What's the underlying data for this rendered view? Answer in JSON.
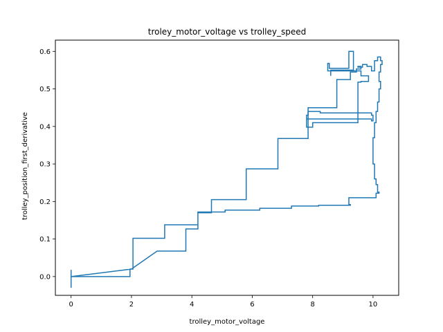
{
  "chart_data": {
    "type": "line",
    "title": "troley_motor_voltage vs trolley_speed",
    "xlabel": "trolley_motor_voltage",
    "ylabel": "trolley_position_first_derivative",
    "xlim": [
      -0.52,
      10.85
    ],
    "ylim": [
      -0.05,
      0.63
    ],
    "xticks": [
      0,
      2,
      4,
      6,
      8,
      10
    ],
    "xtick_labels": [
      "0",
      "2",
      "4",
      "6",
      "8",
      "10"
    ],
    "yticks": [
      0.0,
      0.1,
      0.2,
      0.3,
      0.4,
      0.5,
      0.6
    ],
    "ytick_labels": [
      "0.0",
      "0.1",
      "0.2",
      "0.3",
      "0.4",
      "0.5",
      "0.6"
    ],
    "grid": false,
    "legend": "none",
    "colors": {
      "series": "#1f77b4",
      "axes": "#000000",
      "background": "#ffffff"
    },
    "series": [
      {
        "x": [
          0,
          0,
          0,
          0,
          1.95,
          1.95,
          2.05,
          2.05,
          3.1,
          3.1,
          4.2,
          4.2,
          4.65,
          4.65,
          5.8,
          5.8,
          6.85,
          6.85,
          7.85,
          7.85,
          8.8,
          8.8,
          9.25,
          9.25,
          9.45,
          9.45,
          9.6,
          9.6,
          9.5,
          9.5,
          9.65,
          9.65,
          9.8,
          9.8,
          9.95,
          9.95,
          10.05,
          10.05,
          10.15,
          10.15,
          10.25,
          10.25,
          10.3,
          10.3,
          10.25,
          10.25,
          10.2,
          10.2,
          10.25,
          10.25,
          10.2,
          10.2,
          10.15,
          10.15,
          10.1,
          10.1,
          10.05,
          10.05,
          10.0,
          10.0,
          10.05,
          10.05,
          10.1,
          10.1,
          10.15,
          10.15,
          10.2,
          10.2,
          10.1,
          10.1,
          9.2,
          9.2,
          9.25,
          9.25,
          8.2,
          8.2,
          7.3,
          7.3,
          6.25,
          6.25,
          5.1,
          5.1,
          4.2,
          4.2,
          3.8,
          3.8,
          2.85,
          2.85,
          2.0,
          2.0,
          0
        ],
        "y": [
          0.018,
          -0.03,
          0,
          0,
          0,
          0.02,
          0.02,
          0.102,
          0.102,
          0.138,
          0.138,
          0.17,
          0.17,
          0.205,
          0.205,
          0.287,
          0.287,
          0.368,
          0.368,
          0.45,
          0.45,
          0.525,
          0.525,
          0.545,
          0.545,
          0.553,
          0.553,
          0.56,
          0.56,
          0.558,
          0.558,
          0.565,
          0.565,
          0.56,
          0.56,
          0.548,
          0.548,
          0.575,
          0.575,
          0.585,
          0.585,
          0.575,
          0.575,
          0.565,
          0.565,
          0.545,
          0.545,
          0.52,
          0.52,
          0.5,
          0.5,
          0.465,
          0.465,
          0.44,
          0.44,
          0.41,
          0.41,
          0.37,
          0.37,
          0.3,
          0.3,
          0.26,
          0.26,
          0.245,
          0.245,
          0.225,
          0.225,
          0.222,
          0.222,
          0.21,
          0.21,
          0.192,
          0.192,
          0.19,
          0.19,
          0.188,
          0.188,
          0.182,
          0.182,
          0.177,
          0.177,
          0.172,
          0.172,
          0.127,
          0.127,
          0.068,
          0.068,
          0.068,
          0.02,
          0.02,
          0
        ]
      },
      {
        "x": [
          7.8,
          7.8,
          7.85,
          7.85,
          8.25,
          8.25,
          9.95,
          9.95,
          10.0,
          10.0,
          9.95,
          9.95,
          7.8,
          7.8,
          8.0,
          8.0,
          9.5,
          9.5,
          9.6,
          9.6,
          9.85,
          9.85,
          9.6,
          9.6,
          8.5,
          8.5,
          8.55,
          8.55,
          9.2,
          9.2,
          9.35,
          9.35,
          8.6,
          8.6
        ],
        "y": [
          0.41,
          0.43,
          0.43,
          0.44,
          0.44,
          0.436,
          0.436,
          0.43,
          0.43,
          0.415,
          0.415,
          0.42,
          0.42,
          0.398,
          0.398,
          0.41,
          0.41,
          0.518,
          0.518,
          0.52,
          0.52,
          0.535,
          0.535,
          0.548,
          0.548,
          0.568,
          0.568,
          0.555,
          0.555,
          0.6,
          0.6,
          0.55,
          0.55,
          0.535
        ]
      }
    ]
  }
}
